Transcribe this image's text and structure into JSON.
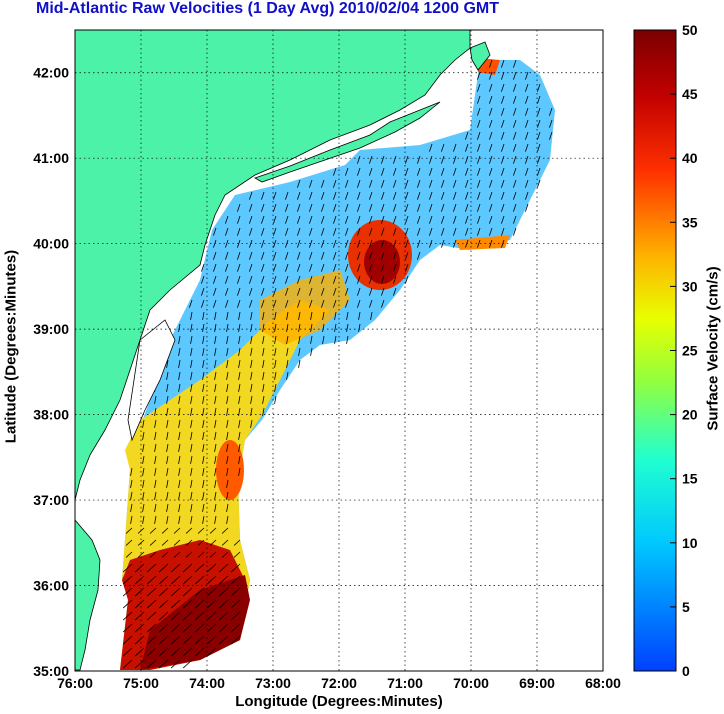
{
  "title": "Mid-Atlantic Raw Velocities (1 Day Avg) 2010/02/04 1200 GMT",
  "map": {
    "xlabel": "Longitude (Degrees:Minutes)",
    "ylabel": "Latitude (Degrees:Minutes)",
    "x_ticks": [
      "76:00",
      "75:00",
      "74:00",
      "73:00",
      "72:00",
      "71:00",
      "70:00",
      "69:00",
      "68:00"
    ],
    "y_ticks": [
      "42:00",
      "41:00",
      "40:00",
      "39:00",
      "38:00",
      "37:00",
      "36:00",
      "35:00"
    ],
    "lon_range": [
      -76,
      -68
    ],
    "lat_range": [
      35,
      42.5
    ],
    "land_color": "#4cf2a8",
    "grid": "dotted"
  },
  "colorbar": {
    "label": "Surface Velocity (cm/s)",
    "ticks": [
      "50",
      "45",
      "40",
      "35",
      "30",
      "25",
      "20",
      "15",
      "10",
      "5",
      "0"
    ],
    "range": [
      0,
      50
    ],
    "colormap": "jet"
  }
}
